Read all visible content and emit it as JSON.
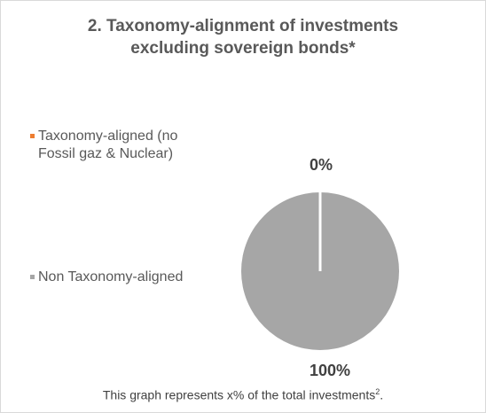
{
  "title": {
    "line1": "2. Taxonomy-alignment of investments",
    "line2": "excluding sovereign bonds*"
  },
  "footnote": {
    "text": "This graph represents x% of the total investments",
    "sup": "2",
    "end": "."
  },
  "chart_data": {
    "type": "pie",
    "title": "2. Taxonomy-alignment of investments excluding sovereign bonds*",
    "categories": [
      "Taxonomy-aligned (no Fossil gaz & Nuclear)",
      "Non Taxonomy-aligned"
    ],
    "values": [
      0,
      100
    ],
    "value_labels": [
      "0%",
      "100%"
    ],
    "colors": [
      "#ed7d31",
      "#a6a6a6"
    ],
    "legend_position": "left",
    "legend": [
      {
        "label": "Taxonomy-aligned (no Fossil gaz & Nuclear)",
        "color": "#ed7d31"
      },
      {
        "label": "Non Taxonomy-aligned",
        "color": "#a6a6a6"
      }
    ]
  }
}
